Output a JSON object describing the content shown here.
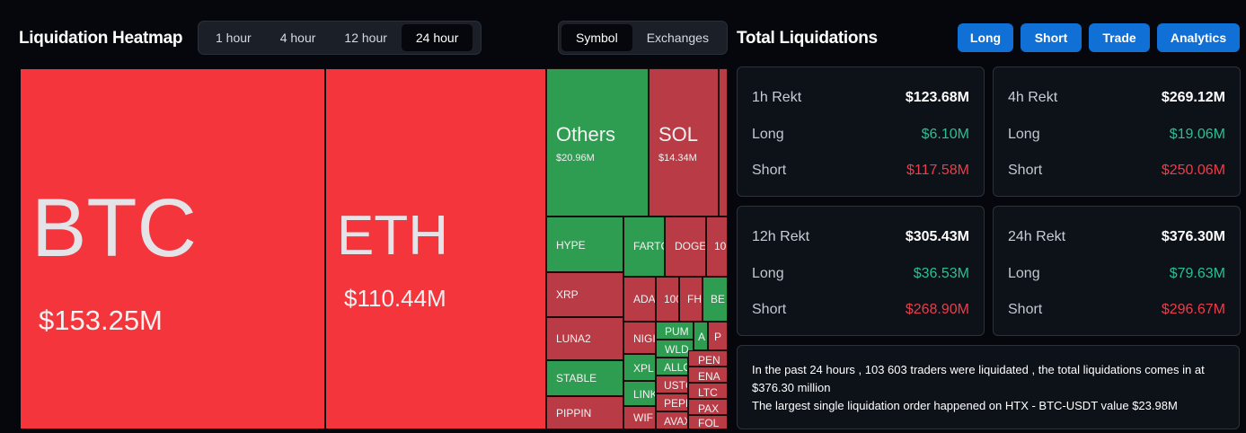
{
  "heatmap": {
    "title": "Liquidation Heatmap",
    "time_tabs": [
      "1 hour",
      "4 hour",
      "12 hour",
      "24 hour"
    ],
    "active_time_tab": "24 hour",
    "view_tabs": [
      "Symbol",
      "Exchanges"
    ],
    "active_view_tab": "Symbol",
    "tiles": [
      {
        "symbol": "BTC",
        "value": "$153.25M",
        "color": "bigred"
      },
      {
        "symbol": "ETH",
        "value": "$110.44M",
        "color": "bigred"
      },
      {
        "symbol": "Others",
        "value": "$20.96M",
        "color": "green"
      },
      {
        "symbol": "SOL",
        "value": "$14.34M",
        "color": "red"
      },
      {
        "symbol": "HYPE",
        "color": "green"
      },
      {
        "symbol": "FARTC",
        "color": "green"
      },
      {
        "symbol": "DOGE",
        "color": "red"
      },
      {
        "symbol": "10",
        "color": "red"
      },
      {
        "symbol": "XRP",
        "color": "red"
      },
      {
        "symbol": "ADA",
        "color": "red"
      },
      {
        "symbol": "100",
        "color": "red"
      },
      {
        "symbol": "FH",
        "color": "red"
      },
      {
        "symbol": "BE",
        "color": "green"
      },
      {
        "symbol": "LUNA2",
        "color": "red"
      },
      {
        "symbol": "NIGI",
        "color": "red"
      },
      {
        "symbol": "PUM",
        "color": "green"
      },
      {
        "symbol": "A",
        "color": "green"
      },
      {
        "symbol": "P",
        "color": "red"
      },
      {
        "symbol": "WLD",
        "color": "green"
      },
      {
        "symbol": "STABLE",
        "color": "green"
      },
      {
        "symbol": "XPL",
        "color": "green"
      },
      {
        "symbol": "ALLO",
        "color": "green"
      },
      {
        "symbol": "PEN",
        "color": "red"
      },
      {
        "symbol": "ENA",
        "color": "red"
      },
      {
        "symbol": "USTC",
        "color": "red"
      },
      {
        "symbol": "LINK",
        "color": "green"
      },
      {
        "symbol": "LTC",
        "color": "red"
      },
      {
        "symbol": "PIPPIN",
        "color": "red"
      },
      {
        "symbol": "PEPE",
        "color": "red"
      },
      {
        "symbol": "PAX",
        "color": "red"
      },
      {
        "symbol": "WIF",
        "color": "red"
      },
      {
        "symbol": "AVAX",
        "color": "red"
      },
      {
        "symbol": "FOL",
        "color": "red"
      }
    ]
  },
  "totals": {
    "title": "Total Liquidations",
    "buttons": [
      "Long",
      "Short",
      "Trade",
      "Analytics"
    ],
    "cards": [
      {
        "period": "1h Rekt",
        "total": "$123.68M",
        "long_label": "Long",
        "long": "$6.10M",
        "short_label": "Short",
        "short": "$117.58M"
      },
      {
        "period": "4h Rekt",
        "total": "$269.12M",
        "long_label": "Long",
        "long": "$19.06M",
        "short_label": "Short",
        "short": "$250.06M"
      },
      {
        "period": "12h Rekt",
        "total": "$305.43M",
        "long_label": "Long",
        "long": "$36.53M",
        "short_label": "Short",
        "short": "$268.90M"
      },
      {
        "period": "24h Rekt",
        "total": "$376.30M",
        "long_label": "Long",
        "long": "$79.63M",
        "short_label": "Short",
        "short": "$296.67M"
      }
    ],
    "summary_line1": "In the past 24 hours , 103 603 traders were liquidated , the total liquidations comes in at $376.30 million",
    "summary_line2": "The largest single liquidation order happened on HTX - BTC-USDT value $23.98M"
  },
  "colors": {
    "background": "#05070c",
    "big_red": "#f5353c",
    "tile_red": "#b93b45",
    "tile_green": "#2e9d52",
    "accent_blue": "#1170d6",
    "long_green": "#2bbf93",
    "short_red": "#ec3d4a"
  }
}
